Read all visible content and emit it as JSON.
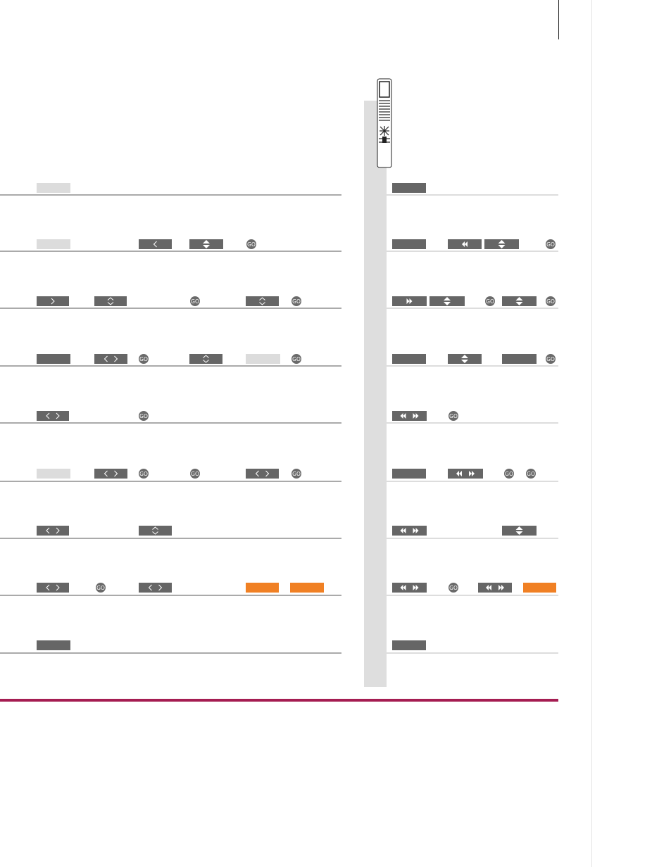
{
  "buttons": {
    "go": "GO"
  }
}
